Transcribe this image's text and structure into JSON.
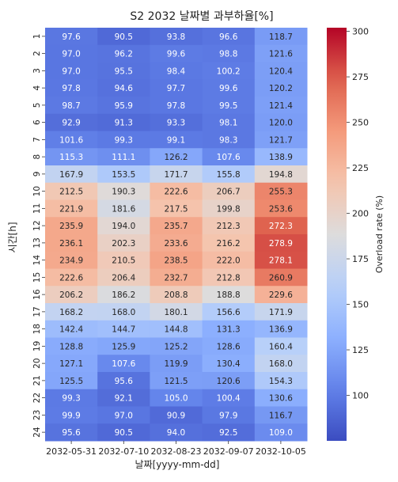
{
  "chart_data": {
    "type": "heatmap",
    "title": "S2 2032 날짜별 과부하율[%]",
    "xlabel": "날짜[yyyy-mm-dd]",
    "ylabel": "시간[h]",
    "colorbar_label": "Overload rate (%)",
    "colormap": "coolwarm",
    "vmin": 75,
    "vmax": 302,
    "colorbar_ticks": [
      100,
      125,
      150,
      175,
      200,
      225,
      250,
      275,
      300
    ],
    "x_categories": [
      "2032-05-31",
      "2032-07-10",
      "2032-08-23",
      "2032-09-07",
      "2032-10-05"
    ],
    "y_categories": [
      "1",
      "2",
      "3",
      "4",
      "5",
      "6",
      "7",
      "8",
      "9",
      "10",
      "11",
      "12",
      "13",
      "14",
      "15",
      "16",
      "17",
      "18",
      "19",
      "20",
      "21",
      "22",
      "23",
      "24"
    ],
    "values": [
      [
        97.6,
        90.5,
        93.8,
        96.6,
        118.7
      ],
      [
        97.0,
        96.2,
        99.6,
        98.8,
        121.6
      ],
      [
        97.0,
        95.5,
        98.4,
        100.2,
        120.4
      ],
      [
        97.8,
        94.6,
        97.7,
        99.6,
        120.2
      ],
      [
        98.7,
        95.9,
        97.8,
        99.5,
        121.4
      ],
      [
        92.9,
        91.3,
        93.3,
        98.1,
        120.0
      ],
      [
        101.6,
        99.3,
        99.1,
        98.3,
        121.7
      ],
      [
        115.3,
        111.1,
        126.2,
        107.6,
        138.9
      ],
      [
        167.9,
        153.5,
        171.7,
        155.8,
        194.8
      ],
      [
        212.5,
        190.3,
        222.6,
        206.7,
        255.3
      ],
      [
        221.9,
        181.6,
        217.5,
        199.8,
        253.6
      ],
      [
        235.9,
        194.0,
        235.7,
        212.3,
        272.3
      ],
      [
        236.1,
        202.3,
        233.6,
        216.2,
        278.9
      ],
      [
        234.9,
        210.5,
        238.5,
        222.0,
        278.1
      ],
      [
        222.6,
        206.4,
        232.7,
        212.8,
        260.9
      ],
      [
        206.2,
        186.2,
        208.8,
        188.8,
        229.6
      ],
      [
        168.2,
        168.0,
        180.1,
        156.6,
        171.9
      ],
      [
        142.4,
        144.7,
        144.8,
        131.3,
        136.9
      ],
      [
        128.8,
        125.9,
        125.2,
        128.6,
        160.4
      ],
      [
        127.1,
        107.6,
        119.9,
        130.4,
        168.0
      ],
      [
        125.5,
        95.6,
        121.5,
        120.6,
        154.3
      ],
      [
        99.3,
        92.1,
        105.0,
        100.4,
        130.6
      ],
      [
        99.9,
        97.0,
        90.9,
        97.9,
        116.7
      ],
      [
        95.6,
        90.5,
        94.0,
        92.5,
        109.0
      ]
    ]
  }
}
